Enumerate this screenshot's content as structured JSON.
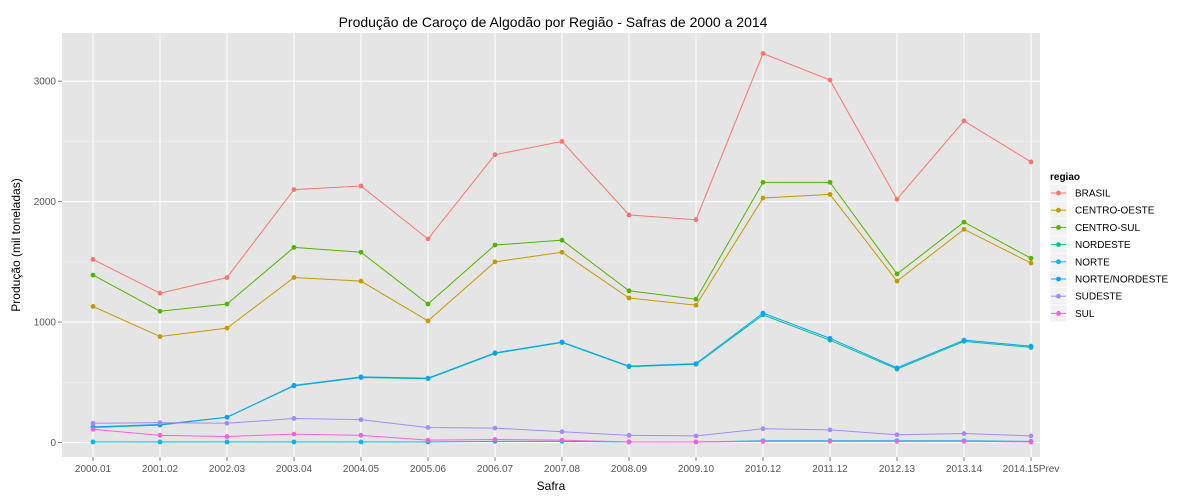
{
  "chart_data": {
    "type": "line",
    "title": "Produção de Caroço de Algodão por Região - Safras de 2000 a 2014",
    "xlabel": "Safra",
    "ylabel": "Produção (mil toneladas)",
    "categories": [
      "2000.01",
      "2001.02",
      "2002.03",
      "2003.04",
      "2004.05",
      "2005.06",
      "2006.07",
      "2007.08",
      "2008.09",
      "2009.10",
      "2010.12",
      "2011.12",
      "2012.13",
      "2013.14",
      "2014.15Prev"
    ],
    "ylim": [
      -120,
      3400
    ],
    "yticks": [
      0,
      1000,
      2000,
      3000
    ],
    "yticks_labels": [
      "0",
      "1000",
      "2000",
      "3000"
    ],
    "grid": true,
    "legend": {
      "title": "regiao",
      "position": "right"
    },
    "series": [
      {
        "name": "BRASIL",
        "color": "#F8766D",
        "values": [
          1520,
          1240,
          1370,
          2100,
          2130,
          1690,
          2390,
          2500,
          1890,
          1850,
          3230,
          3010,
          2020,
          2670,
          2330
        ]
      },
      {
        "name": "CENTRO-OESTE",
        "color": "#C49A00",
        "values": [
          1130,
          880,
          950,
          1370,
          1340,
          1010,
          1500,
          1580,
          1200,
          1140,
          2030,
          2060,
          1340,
          1770,
          1490
        ]
      },
      {
        "name": "CENTRO-SUL",
        "color": "#53B400",
        "values": [
          1390,
          1090,
          1150,
          1620,
          1580,
          1150,
          1640,
          1680,
          1260,
          1190,
          2160,
          2160,
          1400,
          1830,
          1530
        ]
      },
      {
        "name": "NORDESTE",
        "color": "#00C094",
        "values": [
          125,
          145,
          210,
          470,
          540,
          530,
          740,
          830,
          630,
          650,
          1060,
          850,
          610,
          840,
          790
        ]
      },
      {
        "name": "NORTE",
        "color": "#00B6EB",
        "values": [
          5,
          5,
          5,
          5,
          5,
          5,
          10,
          10,
          5,
          5,
          15,
          15,
          15,
          15,
          10
        ]
      },
      {
        "name": "NORTE/NORDESTE",
        "color": "#06A4FF",
        "values": [
          130,
          150,
          210,
          475,
          545,
          535,
          745,
          835,
          635,
          655,
          1075,
          865,
          620,
          850,
          800
        ]
      },
      {
        "name": "SUDESTE",
        "color": "#A58AFF",
        "values": [
          160,
          165,
          160,
          200,
          190,
          125,
          120,
          90,
          60,
          55,
          115,
          105,
          65,
          75,
          55
        ]
      },
      {
        "name": "SUL",
        "color": "#FB61D7",
        "values": [
          110,
          60,
          50,
          70,
          60,
          20,
          25,
          20,
          5,
          5,
          10,
          10,
          10,
          10,
          5
        ]
      }
    ]
  }
}
